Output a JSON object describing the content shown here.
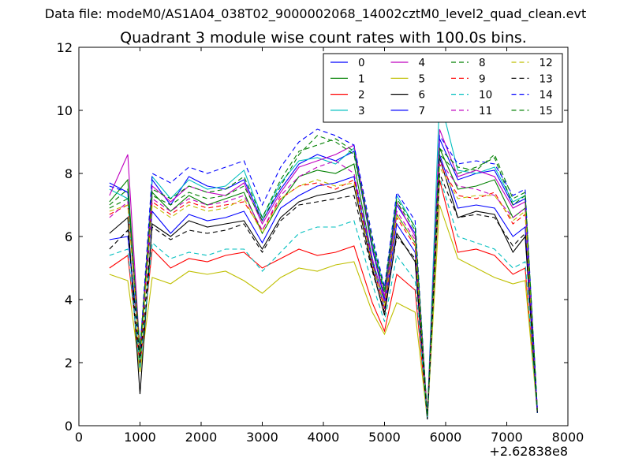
{
  "suptitle": "Data file: modeM0/AS1A04_038T02_9000002068_14002cztM0_level2_quad_clean.evt",
  "chart_data": {
    "type": "line",
    "title": "Quadrant 3 module wise count rates with 100.0s bins.",
    "xlabel": "",
    "ylabel": "",
    "xlim": [
      0,
      8000
    ],
    "ylim": [
      0,
      12
    ],
    "x_ticks": [
      0,
      1000,
      2000,
      3000,
      4000,
      5000,
      6000,
      7000,
      8000
    ],
    "y_ticks": [
      0,
      2,
      4,
      6,
      8,
      10,
      12
    ],
    "x_offset_label": "+2.62838e8",
    "grid": false,
    "legend": {
      "placement": "top-right",
      "columns": 4
    },
    "x": [
      500,
      800,
      1000,
      1200,
      1500,
      1800,
      2100,
      2400,
      2700,
      3000,
      3300,
      3600,
      3900,
      4200,
      4500,
      4800,
      5000,
      5200,
      5500,
      5700,
      5900,
      6200,
      6500,
      6800,
      7100,
      7300,
      7500
    ],
    "series": [
      {
        "name": "0",
        "color": "#0000ff",
        "dash": false,
        "values": [
          7.7,
          7.4,
          2.2,
          7.8,
          7.0,
          7.9,
          7.6,
          7.5,
          7.8,
          6.5,
          7.5,
          8.3,
          8.6,
          8.4,
          8.7,
          5.6,
          4.0,
          7.0,
          6.1,
          0.3,
          9.1,
          7.8,
          8.0,
          8.1,
          7.0,
          7.2,
          0.5
        ]
      },
      {
        "name": "1",
        "color": "#008000",
        "dash": false,
        "values": [
          7.1,
          7.8,
          2.1,
          7.4,
          6.8,
          7.3,
          7.0,
          7.2,
          7.4,
          6.1,
          7.1,
          7.9,
          8.1,
          8.0,
          8.3,
          5.3,
          3.9,
          6.7,
          5.8,
          0.3,
          8.8,
          7.5,
          7.6,
          7.8,
          6.6,
          6.9,
          0.5
        ]
      },
      {
        "name": "2",
        "color": "#ff0000",
        "dash": false,
        "values": [
          5.0,
          5.4,
          1.9,
          5.6,
          5.0,
          5.3,
          5.2,
          5.4,
          5.5,
          5.0,
          5.3,
          5.6,
          5.4,
          5.5,
          5.7,
          3.9,
          3.0,
          4.8,
          4.3,
          0.2,
          7.8,
          5.5,
          5.6,
          5.4,
          4.8,
          5.0,
          0.4
        ]
      },
      {
        "name": "3",
        "color": "#00bfbf",
        "dash": false,
        "values": [
          7.5,
          7.2,
          2.0,
          7.9,
          7.2,
          7.8,
          7.5,
          7.6,
          8.1,
          6.6,
          7.7,
          8.4,
          8.5,
          8.3,
          8.8,
          5.8,
          4.3,
          7.3,
          6.3,
          0.3,
          10.4,
          8.1,
          8.0,
          8.2,
          7.1,
          7.3,
          0.5
        ]
      },
      {
        "name": "4",
        "color": "#bf00bf",
        "dash": false,
        "values": [
          7.3,
          8.6,
          2.3,
          7.6,
          7.1,
          7.6,
          7.4,
          7.3,
          7.7,
          6.4,
          7.4,
          8.2,
          8.4,
          8.6,
          8.9,
          5.7,
          4.1,
          7.1,
          6.0,
          0.3,
          9.4,
          7.9,
          8.1,
          7.9,
          6.9,
          7.1,
          0.5
        ]
      },
      {
        "name": "5",
        "color": "#bfbf00",
        "dash": false,
        "values": [
          4.8,
          4.6,
          1.7,
          4.7,
          4.5,
          4.9,
          4.8,
          4.9,
          4.6,
          4.2,
          4.7,
          5.0,
          4.9,
          5.1,
          5.2,
          3.6,
          2.9,
          3.9,
          3.6,
          0.2,
          7.0,
          5.3,
          5.0,
          4.7,
          4.5,
          4.6,
          0.4
        ]
      },
      {
        "name": "6",
        "color": "#000000",
        "dash": false,
        "values": [
          6.1,
          6.6,
          1.0,
          6.4,
          6.0,
          6.5,
          6.3,
          6.4,
          6.5,
          5.6,
          6.6,
          7.1,
          7.3,
          7.4,
          7.6,
          5.0,
          3.5,
          6.1,
          5.2,
          0.2,
          8.5,
          6.6,
          6.8,
          6.7,
          5.5,
          6.0,
          0.4
        ]
      },
      {
        "name": "7",
        "color": "#0000ff",
        "dash": false,
        "values": [
          5.9,
          6.0,
          2.4,
          6.8,
          6.1,
          6.7,
          6.5,
          6.6,
          6.8,
          5.8,
          6.9,
          7.3,
          7.6,
          7.7,
          7.9,
          5.2,
          3.7,
          6.4,
          5.5,
          0.2,
          8.6,
          6.9,
          7.0,
          6.9,
          6.0,
          6.3,
          0.4
        ]
      },
      {
        "name": "8",
        "color": "#008000",
        "dash": true,
        "values": [
          6.9,
          7.2,
          2.5,
          7.3,
          7.0,
          7.4,
          7.2,
          7.3,
          7.6,
          6.5,
          7.6,
          8.6,
          9.2,
          9.0,
          8.6,
          5.7,
          4.2,
          7.1,
          6.2,
          0.3,
          8.6,
          8.0,
          8.2,
          8.5,
          7.0,
          7.3,
          0.5
        ]
      },
      {
        "name": "9",
        "color": "#ff0000",
        "dash": true,
        "values": [
          6.7,
          7.0,
          2.3,
          7.1,
          6.7,
          7.1,
          6.9,
          7.0,
          7.1,
          6.2,
          7.2,
          7.6,
          7.7,
          7.5,
          7.8,
          5.1,
          3.7,
          6.6,
          5.7,
          0.3,
          8.3,
          7.3,
          7.2,
          7.4,
          6.4,
          6.7,
          0.5
        ]
      },
      {
        "name": "10",
        "color": "#00bfbf",
        "dash": true,
        "values": [
          5.4,
          5.6,
          1.8,
          5.8,
          5.3,
          5.5,
          5.4,
          5.6,
          5.6,
          4.9,
          5.5,
          6.1,
          6.3,
          6.3,
          6.5,
          4.5,
          3.3,
          5.4,
          4.6,
          0.2,
          7.9,
          6.0,
          5.8,
          5.6,
          5.0,
          5.2,
          0.4
        ]
      },
      {
        "name": "11",
        "color": "#bf00bf",
        "dash": true,
        "values": [
          6.6,
          7.1,
          2.2,
          7.2,
          6.8,
          7.2,
          7.0,
          7.1,
          7.3,
          6.2,
          7.3,
          7.9,
          8.2,
          8.4,
          8.0,
          5.3,
          3.9,
          6.8,
          5.9,
          0.3,
          8.4,
          7.6,
          7.5,
          7.3,
          6.6,
          6.9,
          0.5
        ]
      },
      {
        "name": "12",
        "color": "#bfbf00",
        "dash": true,
        "values": [
          6.8,
          7.0,
          2.1,
          7.0,
          6.6,
          7.0,
          6.8,
          6.9,
          7.2,
          6.1,
          7.2,
          7.6,
          7.8,
          7.6,
          7.7,
          5.1,
          3.8,
          6.7,
          5.8,
          0.3,
          8.2,
          7.2,
          7.3,
          7.3,
          6.5,
          6.8,
          0.5
        ]
      },
      {
        "name": "13",
        "color": "#000000",
        "dash": true,
        "values": [
          5.6,
          6.2,
          2.0,
          6.3,
          5.9,
          6.2,
          6.1,
          6.2,
          6.4,
          5.5,
          6.5,
          7.0,
          7.1,
          7.2,
          7.3,
          4.9,
          3.6,
          6.0,
          5.3,
          0.2,
          8.0,
          6.6,
          6.7,
          6.6,
          5.7,
          6.1,
          0.4
        ]
      },
      {
        "name": "14",
        "color": "#0000ff",
        "dash": true,
        "values": [
          7.6,
          7.4,
          2.4,
          8.0,
          7.7,
          8.2,
          8.0,
          8.2,
          8.4,
          7.0,
          8.2,
          9.0,
          9.4,
          9.2,
          8.9,
          6.0,
          4.4,
          7.4,
          6.5,
          0.3,
          9.2,
          8.3,
          8.4,
          8.3,
          7.3,
          7.5,
          0.5
        ]
      },
      {
        "name": "15",
        "color": "#008000",
        "dash": true,
        "values": [
          7.0,
          7.5,
          2.3,
          7.5,
          7.2,
          7.6,
          7.4,
          7.5,
          7.9,
          6.6,
          7.8,
          8.7,
          8.9,
          9.1,
          8.7,
          5.9,
          4.3,
          7.2,
          6.3,
          0.3,
          8.8,
          8.2,
          8.1,
          8.6,
          7.2,
          7.4,
          0.5
        ]
      }
    ]
  }
}
